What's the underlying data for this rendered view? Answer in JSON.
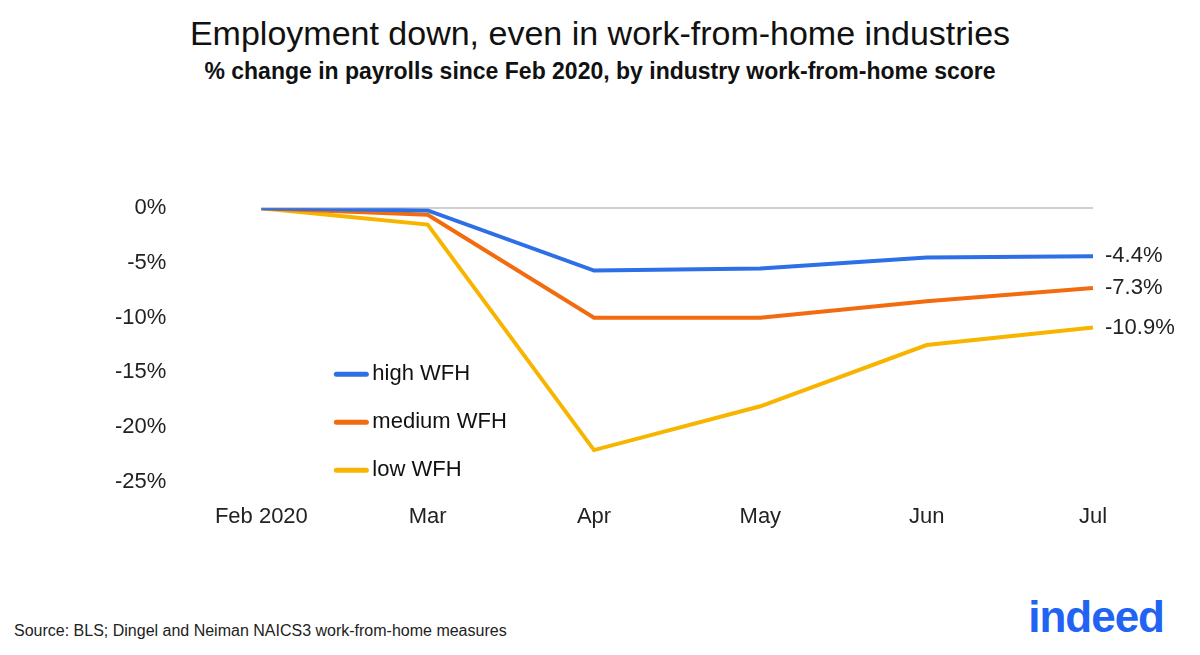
{
  "chart_data": {
    "type": "line",
    "title": "Employment down, even in work-from-home industries",
    "subtitle": "% change in payrolls since Feb 2020, by industry work-from-home score",
    "categories": [
      "Feb 2020",
      "Mar",
      "Apr",
      "May",
      "Jun",
      "Jul"
    ],
    "series": [
      {
        "name": "high WFH",
        "color": "#2d6fe6",
        "values": [
          0,
          -0.2,
          -5.7,
          -5.5,
          -4.5,
          -4.4
        ],
        "value_labels": [
          null,
          null,
          null,
          null,
          null,
          "-4.4%"
        ]
      },
      {
        "name": "medium WFH",
        "color": "#f26b0f",
        "values": [
          0,
          -0.6,
          -10.0,
          -10.0,
          -8.5,
          -7.3
        ],
        "value_labels": [
          null,
          null,
          null,
          null,
          null,
          "-7.3%"
        ]
      },
      {
        "name": "low WFH",
        "color": "#f7b500",
        "values": [
          0,
          -1.5,
          -22.1,
          -18.1,
          -12.5,
          -10.9
        ],
        "value_labels": [
          null,
          null,
          null,
          null,
          null,
          "-10.9%"
        ]
      }
    ],
    "ylim": [
      -25,
      0
    ],
    "yticks": [
      {
        "value": -25,
        "label": "-25%"
      },
      {
        "value": -20,
        "label": "-20%"
      },
      {
        "value": -15,
        "label": "-15%"
      },
      {
        "value": -10,
        "label": "-10%"
      },
      {
        "value": -5,
        "label": "-5%"
      },
      {
        "value": 0,
        "label": "0%"
      }
    ],
    "grid": false,
    "legend": "left",
    "data_labels": true,
    "source": "Source: BLS; Dingel and Neiman NAICS3 work-from-home measures",
    "logo": "indeed"
  }
}
